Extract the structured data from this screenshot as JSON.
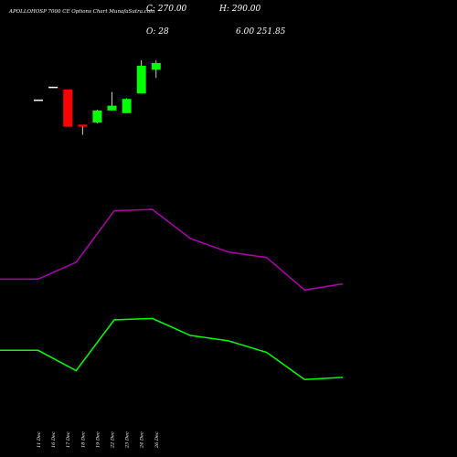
{
  "header": {
    "title": "APOLLOHOSP 7000 CE Options Chart MunafaSutra.com",
    "close_label": "C: 270.00",
    "open_label": "O: 28",
    "high_label": "H: 290.00",
    "low_label": "6.00 251.85"
  },
  "colors": {
    "background": "#000000",
    "up": "#00ff00",
    "down": "#ff0000",
    "upper_line": "#00ff00",
    "lower_line": "#b000b0",
    "text": "#ffffff"
  },
  "chart_data": {
    "type": "candlestick",
    "categories": [
      "11 Dec",
      "16 Dec",
      "17 Dec",
      "18 Dec",
      "19 Dec",
      "22 Dec",
      "23 Dec",
      "24 Dec",
      "26 Dec"
    ],
    "ohlc": [
      {
        "open": 40,
        "high": 40,
        "low": 40,
        "close": 40
      },
      {
        "open": 59,
        "high": 59,
        "low": 59,
        "close": 59
      },
      {
        "open": 55,
        "high": 55,
        "low": 0,
        "close": 0
      },
      {
        "open": 3,
        "high": 3,
        "low": -12,
        "close": 0
      },
      {
        "open": 6,
        "high": 25,
        "low": 5,
        "close": 24
      },
      {
        "open": 24,
        "high": 51,
        "low": 24,
        "close": 31
      },
      {
        "open": 20,
        "high": 42,
        "low": 20,
        "close": 41
      },
      {
        "open": 49,
        "high": 98,
        "low": 49,
        "close": 90
      },
      {
        "open": 84,
        "high": 98,
        "low": 72,
        "close": 94
      }
    ],
    "line_series": [
      {
        "values": [
          -330,
          -330,
          -360,
          -285,
          -283,
          -308,
          -316,
          -333,
          -373,
          -370
        ]
      },
      {
        "values": [
          -225,
          -225,
          -200,
          -124,
          -122,
          -165,
          -185,
          -193,
          -241,
          -232
        ]
      }
    ],
    "ylim": [
      -420,
      160
    ]
  }
}
